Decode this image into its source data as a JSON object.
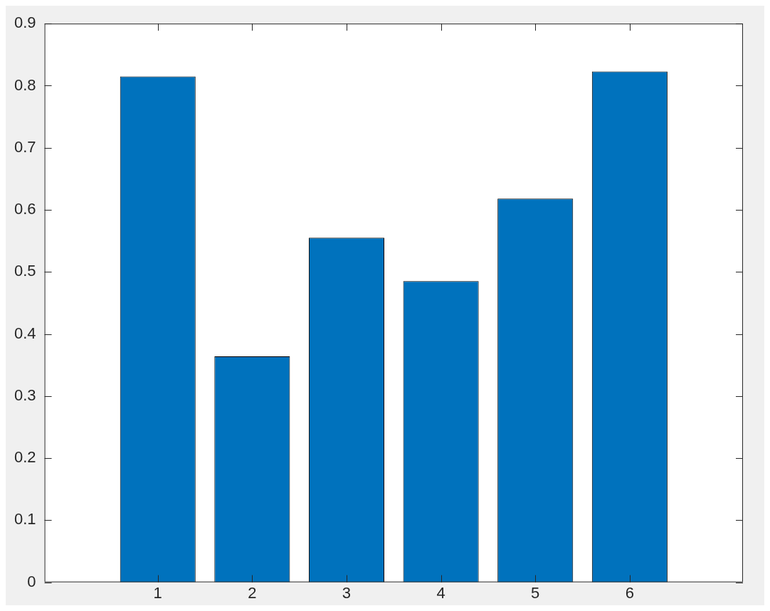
{
  "chart_data": {
    "type": "bar",
    "x": [
      1,
      2,
      3,
      4,
      5,
      6
    ],
    "values": [
      0.815,
      0.364,
      0.555,
      0.485,
      0.618,
      0.823
    ],
    "color": "#0072bd",
    "xlim": [
      -0.2,
      7.2
    ],
    "xticks": [
      1,
      2,
      3,
      4,
      5,
      6
    ],
    "ylim": [
      0,
      0.9
    ],
    "yticks": [
      0,
      0.1,
      0.2,
      0.3,
      0.4,
      0.5,
      0.6,
      0.7,
      0.8,
      0.9
    ],
    "grid": false,
    "legend": false
  }
}
